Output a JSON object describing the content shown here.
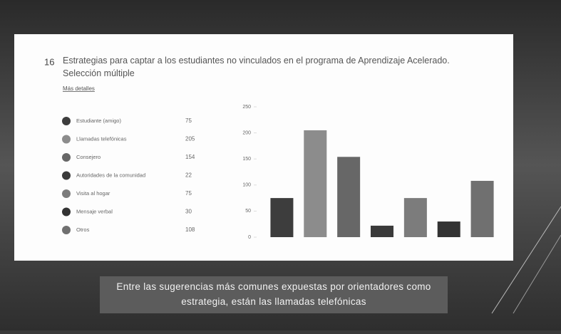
{
  "chart_data": {
    "type": "bar",
    "question_number": "16",
    "title": "Estrategias para captar a los estudiantes no vinculados en el programa de Aprendizaje Acelerado. Selección múltiple",
    "link": "Más detalles",
    "categories": [
      "Estudiante (amigo)",
      "Llamadas telefónicas",
      "Consejero",
      "Autoridades de la comunidad",
      "Visita al hogar",
      "Mensaje verbal",
      "Otros"
    ],
    "values": [
      75,
      205,
      154,
      22,
      75,
      30,
      108
    ],
    "colors": [
      "#3d3d3d",
      "#8c8c8c",
      "#676767",
      "#3a3a3a",
      "#7c7c7c",
      "#333333",
      "#707070"
    ],
    "ylim": [
      0,
      250
    ],
    "yticks": [
      0,
      50,
      100,
      150,
      200,
      250
    ],
    "caption": "Entre las sugerencias más comunes expuestas por orientadores como estrategia, están las llamadas telefónicas"
  }
}
